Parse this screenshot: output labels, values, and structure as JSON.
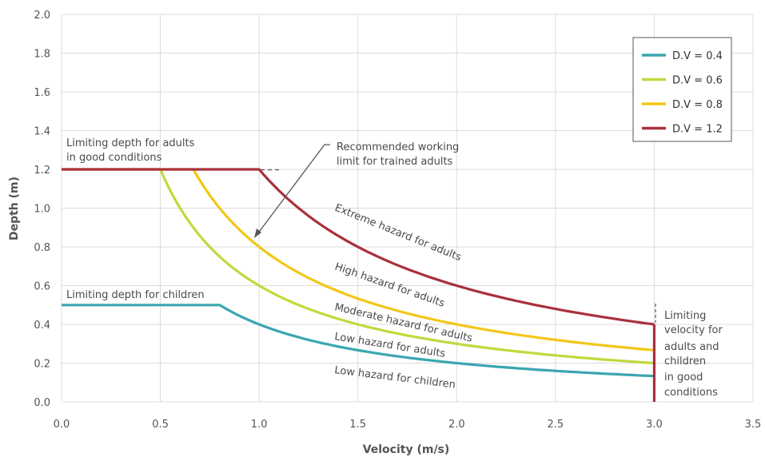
{
  "chart_data": {
    "type": "line",
    "title": "",
    "xlabel": "Velocity (m/s)",
    "ylabel": "Depth (m)",
    "xlim": [
      0,
      3.5
    ],
    "ylim": [
      0,
      2.0
    ],
    "x_ticks": [
      "0.0",
      "0.5",
      "1.0",
      "1.5",
      "2.0",
      "2.5",
      "3.0",
      "3.5"
    ],
    "y_ticks": [
      "0.0",
      "0.2",
      "0.4",
      "0.6",
      "0.8",
      "1.0",
      "1.2",
      "1.4",
      "1.6",
      "1.8",
      "2.0"
    ],
    "grid": true,
    "legend_position": "top-right",
    "x_max": 3.0,
    "depth_caps": {
      "dv_0_4": 0.5,
      "others": 1.2
    },
    "series": [
      {
        "name": "D.V = 0.4",
        "dv": 0.4,
        "color": "#3aa6b0"
      },
      {
        "name": "D.V = 0.6",
        "dv": 0.6,
        "color": "#c3d83c"
      },
      {
        "name": "D.V = 0.8",
        "dv": 0.8,
        "color": "#f3c719"
      },
      {
        "name": "D.V = 1.2",
        "dv": 1.2,
        "color": "#a8313d"
      }
    ],
    "velocity_limit": {
      "x": 3.0,
      "y_top": 0.4,
      "color": "#a8313d"
    },
    "annotations": {
      "adult_depth": [
        "Limiting depth for adults",
        "in good conditions"
      ],
      "child_depth": "Limiting depth for children",
      "recommended": [
        "Recommended working",
        "limit for trained adults"
      ],
      "extreme": "Extreme hazard for adults",
      "high": "High hazard for adults",
      "moderate": "Moderate hazard for adults",
      "low_adults": "Low hazard for adults",
      "low_children": "Low hazard for children",
      "velocity_limit": [
        "Limiting",
        "velocity for",
        "adults and",
        "children",
        "in good",
        "conditions"
      ]
    }
  }
}
